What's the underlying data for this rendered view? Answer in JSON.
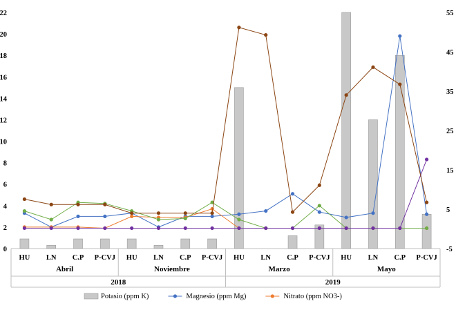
{
  "chart_data": {
    "type": "bar",
    "categories": [
      "HU",
      "LN",
      "C.P",
      "P-CVJ",
      "HU",
      "LN",
      "C.P",
      "P-CVJ",
      "HU",
      "LN",
      "C.P",
      "P-CVJ",
      "HU",
      "LN",
      "C.P",
      "P-CVJ"
    ],
    "groups": [
      {
        "label": "Abril",
        "year": "2018",
        "span": [
          0,
          3
        ]
      },
      {
        "label": "Noviembre",
        "year": "2018",
        "span": [
          4,
          7
        ]
      },
      {
        "label": "Marzo",
        "year": "2019",
        "span": [
          8,
          11
        ]
      },
      {
        "label": "Mayo",
        "year": "2019",
        "span": [
          12,
          15
        ]
      }
    ],
    "years": [
      {
        "label": "2018",
        "span": [
          0,
          7
        ]
      },
      {
        "label": "2019",
        "span": [
          8,
          15
        ]
      }
    ],
    "y_left": {
      "ylim": [
        0,
        22
      ],
      "ticks": [
        0,
        2,
        4,
        6,
        8,
        10,
        12,
        14,
        16,
        18,
        20,
        22
      ]
    },
    "y_right": {
      "ylim": [
        -5,
        55
      ],
      "ticks": [
        -5,
        5,
        15,
        25,
        35,
        45,
        55
      ]
    },
    "series": [
      {
        "name": "Potasio (ppm K)",
        "kind": "bar",
        "axis": "left",
        "color": "#c8c8c8",
        "values": [
          0.9,
          0.3,
          0.9,
          0.9,
          0.9,
          0.3,
          0.9,
          0.9,
          15.0,
          0.0,
          1.2,
          2.2,
          22.0,
          12.0,
          18.0,
          3.2
        ]
      },
      {
        "name": "Magnesio (ppm Mg)",
        "kind": "line",
        "axis": "left",
        "color": "#4472c4",
        "values": [
          3.3,
          2.0,
          3.0,
          3.0,
          3.3,
          2.0,
          3.0,
          3.0,
          3.2,
          3.5,
          5.1,
          3.4,
          2.9,
          3.3,
          19.8,
          3.2
        ]
      },
      {
        "name": "Nitrato (ppm NO3-)",
        "kind": "line",
        "axis": "left",
        "color": "#ed7d31",
        "values": [
          2.0,
          2.0,
          2.0,
          1.9,
          3.0,
          2.9,
          2.9,
          3.7,
          1.9,
          1.9,
          1.9,
          1.9,
          1.9,
          1.9,
          1.9,
          1.9
        ]
      },
      {
        "name": "",
        "kind": "line",
        "axis": "left",
        "color": "#70ad47",
        "values": [
          3.5,
          2.7,
          4.3,
          4.2,
          3.5,
          2.7,
          2.8,
          4.3,
          2.7,
          1.9,
          1.9,
          4.0,
          1.9,
          1.9,
          1.9,
          1.9
        ]
      },
      {
        "name": "",
        "kind": "line",
        "axis": "left",
        "color": "#7030a0",
        "values": [
          1.9,
          1.9,
          1.9,
          1.9,
          1.9,
          1.9,
          1.9,
          1.9,
          1.9,
          1.9,
          1.9,
          1.9,
          1.9,
          1.9,
          1.9,
          8.3
        ]
      },
      {
        "name": "",
        "kind": "line",
        "axis": "left",
        "color": "#8b4513",
        "values": [
          4.6,
          4.1,
          4.1,
          4.1,
          3.3,
          3.3,
          3.3,
          3.3,
          20.6,
          19.9,
          3.4,
          5.9,
          14.3,
          16.9,
          15.3,
          4.3
        ]
      }
    ],
    "legend_position": "bottom",
    "grid": false
  }
}
